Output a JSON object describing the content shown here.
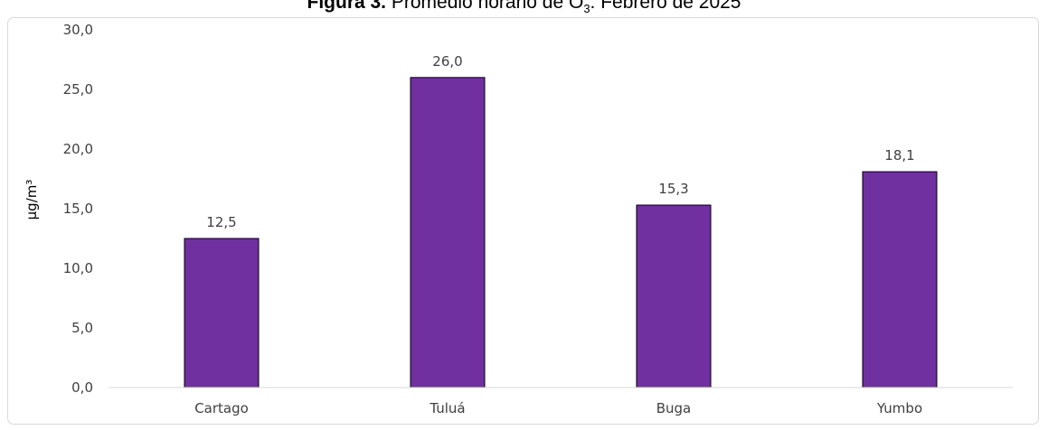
{
  "chart_data": {
    "type": "bar",
    "title_bold": "Figura 3.",
    "title_rest": " Promedio horario de O",
    "title_sub": "3",
    "title_end": ". Febrero de 2025",
    "ylabel": "µg/m³",
    "xlabel": "",
    "categories": [
      "Cartago",
      "Tuluá",
      "Buga",
      "Yumbo"
    ],
    "values": [
      12.5,
      26.0,
      15.3,
      18.1
    ],
    "value_labels": [
      "12,5",
      "26,0",
      "15,3",
      "18,1"
    ],
    "ylim": [
      0,
      30
    ],
    "yticks": [
      0,
      5,
      10,
      15,
      20,
      25,
      30
    ],
    "ytick_labels": [
      "0,0",
      "5,0",
      "10,0",
      "15,0",
      "20,0",
      "25,0",
      "30,0"
    ],
    "bar_color": "#7030a0",
    "bar_edge": "#000000",
    "grid": false,
    "legend": "none"
  }
}
